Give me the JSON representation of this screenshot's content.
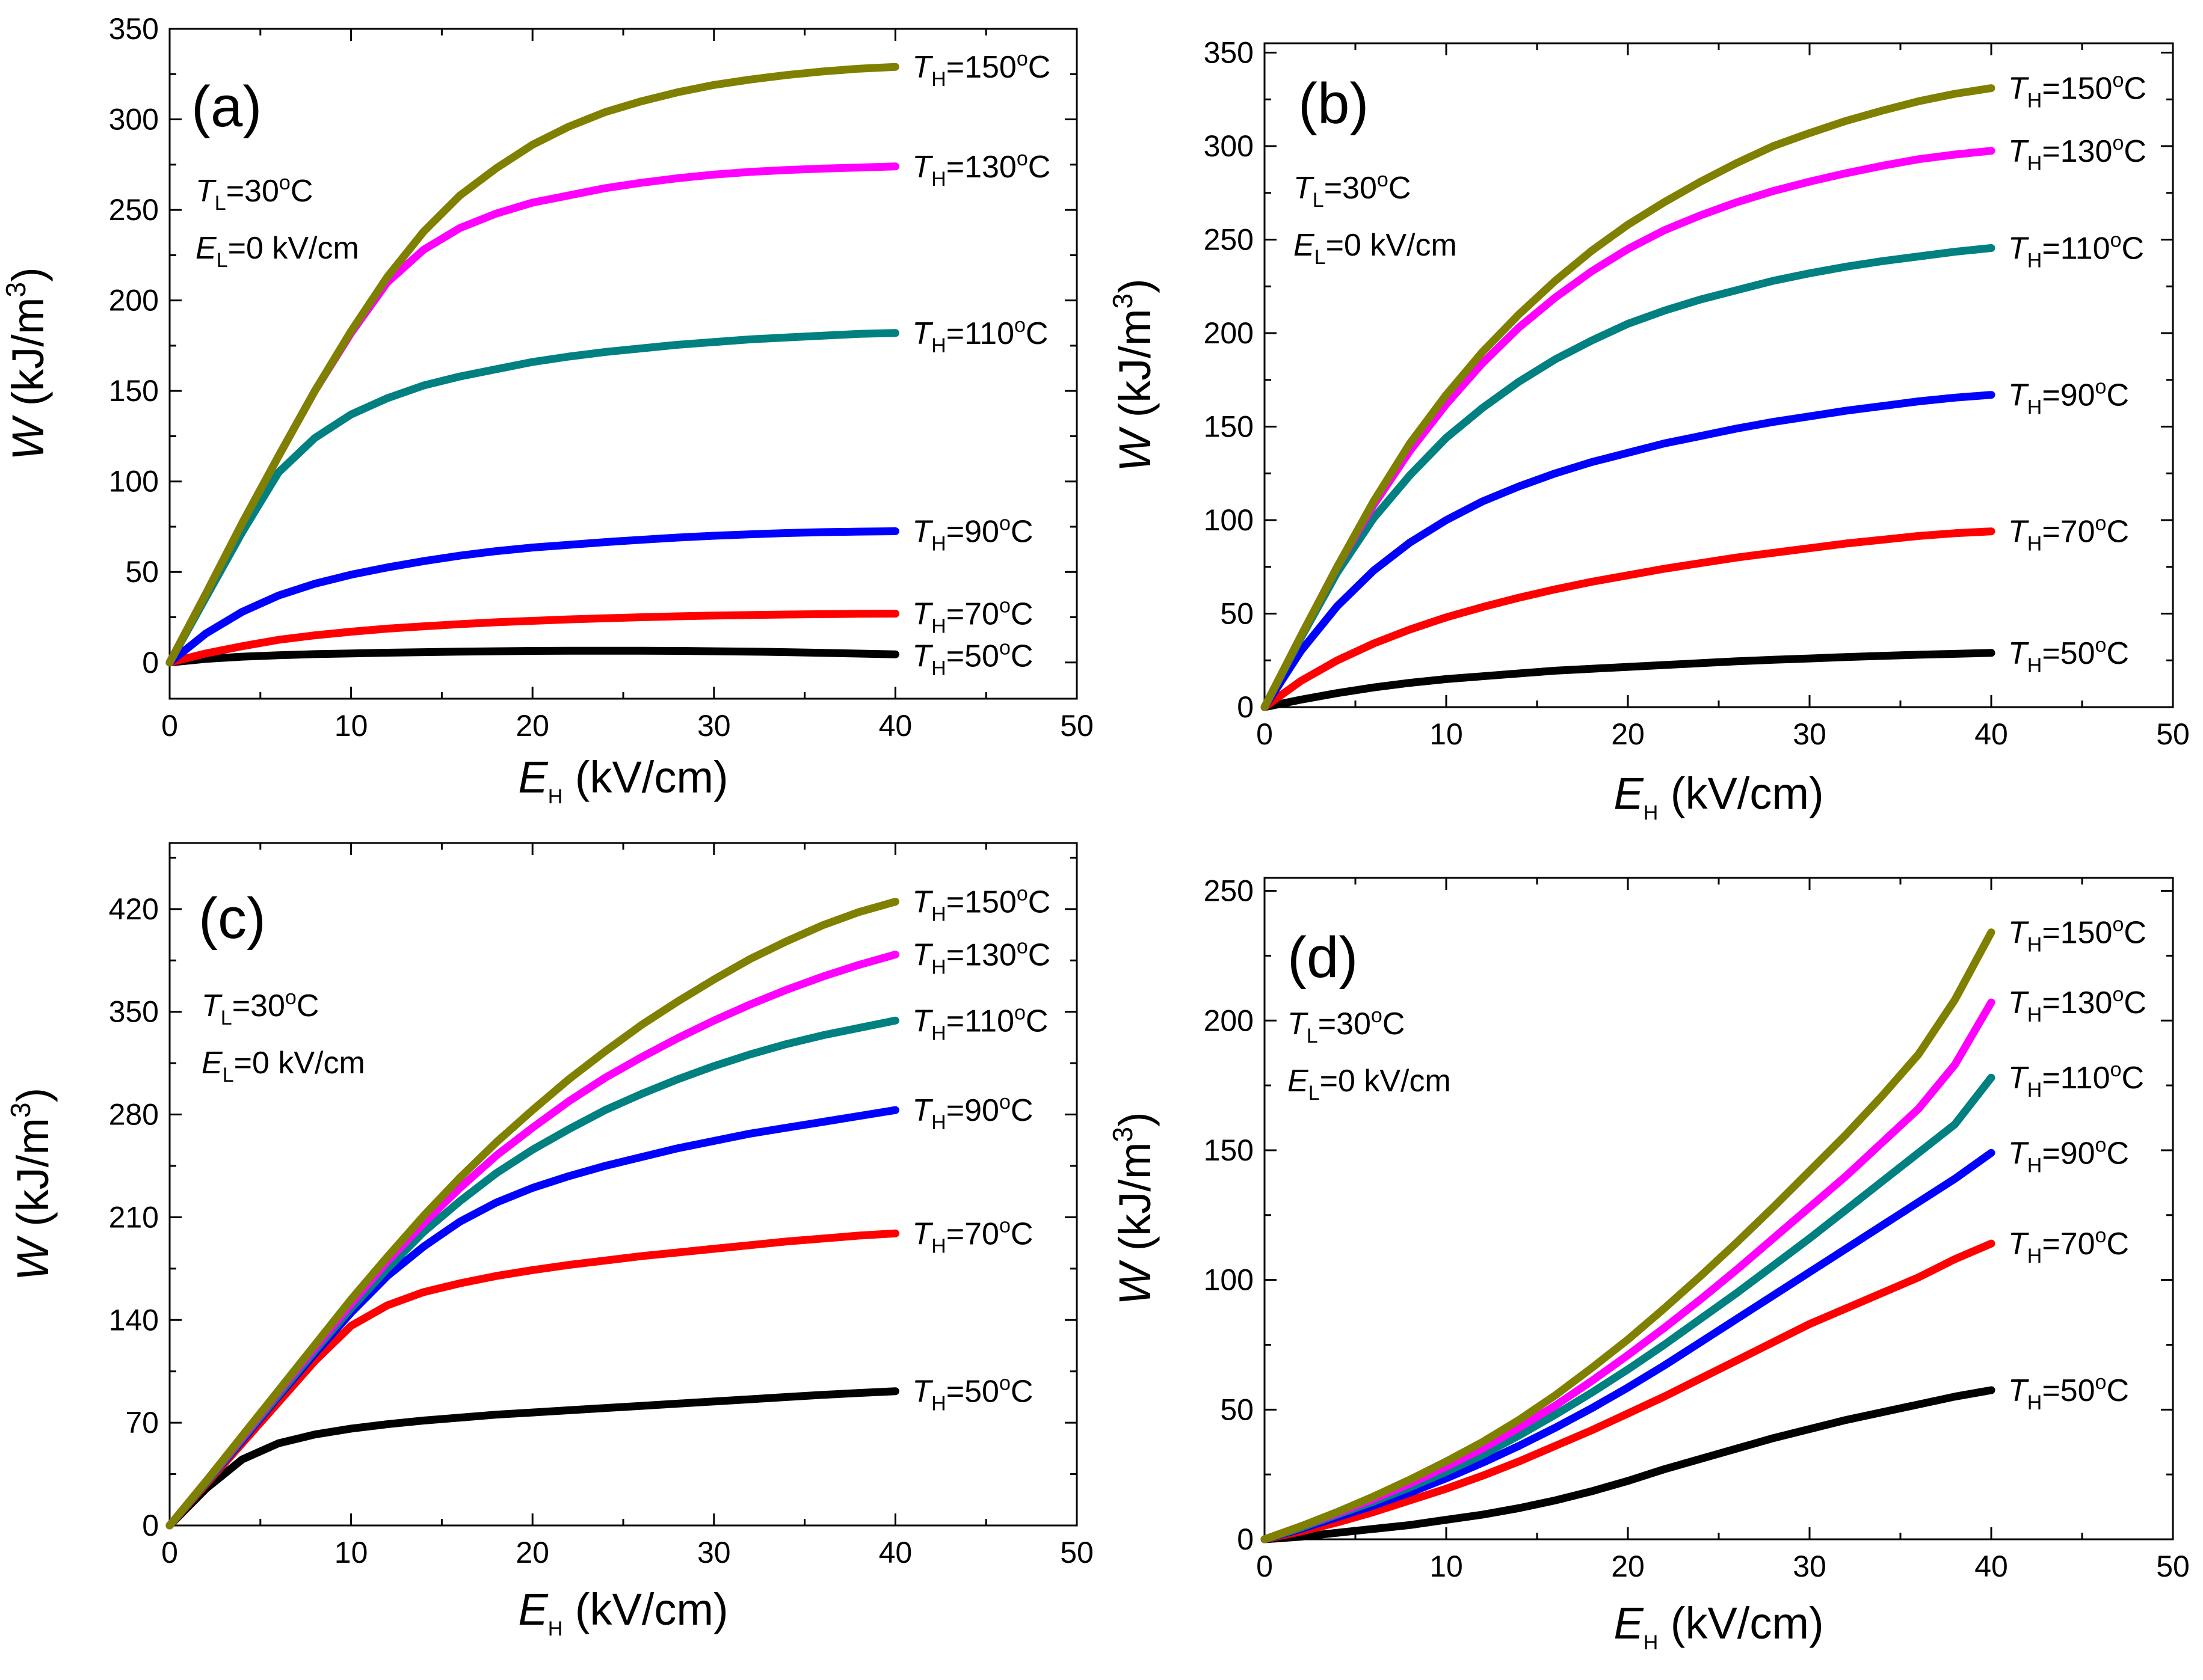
{
  "colors": {
    "T50": "#000000",
    "T70": "#ff0000",
    "T90": "#0000ff",
    "T110": "#008080",
    "T130": "#ff00ff",
    "T150": "#808000"
  },
  "common": {
    "xlabel": "E",
    "xlabel_sub": "H",
    "xlabel_unit": " (kV/cm)",
    "ylabel": "W",
    "ylabel_unit": " (kJ/m",
    "ylabel_sup": "3",
    "ylabel_close": ")",
    "annot_tl_var": "T",
    "annot_tl_sub": "L",
    "annot_tl_val": "=30",
    "annot_deg": "o",
    "annot_c": "C",
    "annot_el_var": "E",
    "annot_el_sub": "L",
    "annot_el_val": "=0 kV/cm",
    "series_var": "T",
    "series_sub": "H"
  },
  "chart_data": [
    {
      "type": "line",
      "panel": "(a)",
      "xlim": [
        0,
        50
      ],
      "ylim": [
        -20,
        350
      ],
      "xticks": [
        0,
        10,
        20,
        30,
        40,
        50
      ],
      "yticks": [
        0,
        50,
        100,
        150,
        200,
        250,
        300,
        350
      ],
      "x": [
        0,
        2,
        4,
        6,
        8,
        10,
        12,
        14,
        16,
        18,
        20,
        22,
        24,
        26,
        28,
        30,
        32,
        34,
        36,
        38,
        40
      ],
      "series": [
        {
          "name": "TH=50C",
          "key": "T50",
          "label_pre": "=50",
          "values": [
            0,
            2.0,
            3.2,
            4.0,
            4.6,
            5.0,
            5.4,
            5.7,
            6.0,
            6.2,
            6.4,
            6.5,
            6.5,
            6.5,
            6.4,
            6.2,
            6.0,
            5.7,
            5.3,
            4.9,
            4.5
          ]
        },
        {
          "name": "TH=70C",
          "key": "T70",
          "label_pre": "=70",
          "values": [
            0,
            5,
            9,
            12.5,
            15,
            17,
            18.7,
            20,
            21.2,
            22.2,
            23,
            23.8,
            24.4,
            25,
            25.5,
            25.9,
            26.2,
            26.5,
            26.7,
            26.9,
            27
          ]
        },
        {
          "name": "TH=90C",
          "key": "T90",
          "label_pre": "=90",
          "values": [
            0,
            16,
            28,
            37,
            43.5,
            48.5,
            52.5,
            56,
            59,
            61.5,
            63.5,
            65,
            66.5,
            67.8,
            69,
            70,
            70.8,
            71.5,
            72,
            72.3,
            72.5
          ]
        },
        {
          "name": "TH=110C",
          "key": "T110",
          "label_pre": "=110",
          "values": [
            0,
            36,
            72,
            105,
            124,
            137,
            146,
            153,
            158,
            162,
            166,
            169,
            171.5,
            173.5,
            175.5,
            177,
            178.5,
            179.5,
            180.5,
            181.5,
            182
          ]
        },
        {
          "name": "TH=130C",
          "key": "T130",
          "label_pre": "=130",
          "values": [
            0,
            38,
            77,
            114,
            150,
            182,
            210,
            228,
            240,
            248,
            254,
            258,
            262,
            265,
            267.5,
            269.5,
            271,
            272,
            272.8,
            273.4,
            274
          ]
        },
        {
          "name": "TH=150C",
          "key": "T150",
          "label_pre": "=150",
          "values": [
            0,
            38,
            77,
            114,
            150,
            183,
            213,
            238,
            258,
            273,
            286,
            296,
            304,
            310,
            315,
            319,
            322,
            324.5,
            326.5,
            328,
            329
          ]
        }
      ]
    },
    {
      "type": "line",
      "panel": "(b)",
      "xlim": [
        0,
        50
      ],
      "ylim": [
        0,
        355
      ],
      "xticks": [
        0,
        10,
        20,
        30,
        40,
        50
      ],
      "yticks": [
        0,
        50,
        100,
        150,
        200,
        250,
        300,
        350
      ],
      "x": [
        0,
        2,
        4,
        6,
        8,
        10,
        12,
        14,
        16,
        18,
        20,
        22,
        24,
        26,
        28,
        30,
        32,
        34,
        36,
        38,
        40
      ],
      "series": [
        {
          "name": "TH=50C",
          "key": "T50",
          "label_pre": "=50",
          "values": [
            0,
            4,
            7.5,
            10.5,
            13,
            15,
            16.5,
            18,
            19.5,
            20.5,
            21.5,
            22.5,
            23.5,
            24.5,
            25.3,
            26,
            26.8,
            27.4,
            28,
            28.5,
            29
          ]
        },
        {
          "name": "TH=70C",
          "key": "T70",
          "label_pre": "=70",
          "values": [
            0,
            14,
            25,
            34,
            41.5,
            48,
            53.5,
            58.5,
            63,
            67,
            70.5,
            74,
            77,
            80,
            82.5,
            85,
            87.5,
            89.5,
            91.5,
            93,
            94
          ]
        },
        {
          "name": "TH=90C",
          "key": "T90",
          "label_pre": "=90",
          "values": [
            0,
            30,
            54,
            73,
            88,
            100,
            110,
            118,
            125,
            131,
            136,
            141,
            145,
            149,
            152.5,
            155.5,
            158.5,
            161,
            163.5,
            165.5,
            167
          ]
        },
        {
          "name": "TH=110C",
          "key": "T110",
          "label_pre": "=110",
          "values": [
            0,
            37,
            72,
            101,
            124,
            144,
            160,
            174,
            186,
            196,
            205,
            212,
            218,
            223,
            228,
            232,
            235.5,
            238.5,
            241,
            243.5,
            245.5
          ]
        },
        {
          "name": "TH=130C",
          "key": "T130",
          "label_pre": "=130",
          "values": [
            0,
            38,
            75,
            108,
            137,
            162,
            184,
            203,
            219,
            233,
            245,
            255,
            263,
            270,
            276,
            281,
            285.5,
            289.5,
            293,
            295.5,
            297.5
          ]
        },
        {
          "name": "TH=150C",
          "key": "T150",
          "label_pre": "=150",
          "values": [
            0,
            38,
            75,
            110,
            141,
            167,
            190,
            210,
            228,
            244,
            258,
            270,
            281,
            291,
            300,
            307,
            313.5,
            319,
            324,
            328,
            331
          ]
        }
      ]
    },
    {
      "type": "line",
      "panel": "(c)",
      "xlim": [
        0,
        50
      ],
      "ylim": [
        0,
        465
      ],
      "xticks": [
        0,
        10,
        20,
        30,
        40,
        50
      ],
      "yticks": [
        0,
        70,
        140,
        210,
        280,
        350,
        420
      ],
      "x": [
        0,
        2,
        4,
        6,
        8,
        10,
        12,
        14,
        16,
        18,
        20,
        22,
        24,
        26,
        28,
        30,
        32,
        34,
        36,
        38,
        40
      ],
      "series": [
        {
          "name": "TH=50C",
          "key": "T50",
          "label_pre": "=50",
          "values": [
            0,
            25,
            45,
            56,
            62,
            66,
            69,
            71.5,
            73.5,
            75.5,
            77,
            78.5,
            80,
            81.5,
            83,
            84.5,
            86,
            87.5,
            89,
            90.3,
            91.5
          ]
        },
        {
          "name": "TH=70C",
          "key": "T70",
          "label_pre": "=70",
          "values": [
            0,
            28,
            56,
            84,
            112,
            136,
            150,
            159,
            165,
            170,
            174,
            177.5,
            180.5,
            183.5,
            186,
            188.5,
            191,
            193.5,
            195.5,
            197.5,
            199
          ]
        },
        {
          "name": "TH=90C",
          "key": "T90",
          "label_pre": "=90",
          "values": [
            0,
            29,
            58,
            88,
            117,
            145,
            170,
            190,
            207,
            220,
            230,
            238,
            245,
            251,
            257,
            262,
            267,
            271,
            275,
            279,
            283
          ]
        },
        {
          "name": "TH=110C",
          "key": "T110",
          "label_pre": "=110",
          "values": [
            0,
            29,
            59,
            89,
            119,
            148,
            175,
            200,
            221,
            240,
            256,
            270,
            283,
            294,
            304,
            313,
            321,
            328,
            334,
            339,
            344
          ]
        },
        {
          "name": "TH=130C",
          "key": "T130",
          "label_pre": "=130",
          "values": [
            0,
            30,
            60,
            91,
            121,
            151,
            180,
            206,
            230,
            252,
            271,
            289,
            305,
            319,
            332,
            344,
            355,
            365,
            374,
            382,
            389
          ]
        },
        {
          "name": "TH=150C",
          "key": "T150",
          "label_pre": "=150",
          "values": [
            0,
            30,
            61,
            92,
            123,
            154,
            183,
            211,
            237,
            261,
            283,
            304,
            323,
            341,
            357,
            372,
            386,
            398,
            409,
            418,
            425
          ]
        }
      ]
    },
    {
      "type": "line",
      "panel": "(d)",
      "xlim": [
        0,
        50
      ],
      "ylim": [
        0,
        255
      ],
      "xticks": [
        0,
        10,
        20,
        30,
        40,
        50
      ],
      "yticks": [
        0,
        50,
        100,
        150,
        200,
        250
      ],
      "x": [
        0,
        2,
        4,
        6,
        8,
        10,
        12,
        14,
        16,
        18,
        20,
        22,
        24,
        26,
        28,
        30,
        32,
        34,
        36,
        38,
        40
      ],
      "series": [
        {
          "name": "TH=50C",
          "key": "T50",
          "label_pre": "=50",
          "values": [
            0,
            1,
            2.5,
            4,
            5.5,
            7.5,
            9.5,
            12,
            15,
            18.5,
            22.5,
            27,
            31,
            35,
            39,
            42.5,
            46,
            49,
            52,
            55,
            57.5
          ]
        },
        {
          "name": "TH=70C",
          "key": "T70",
          "label_pre": "=70",
          "values": [
            0,
            3,
            6.5,
            10.5,
            15,
            19.5,
            24.5,
            30,
            36,
            42,
            48.5,
            55,
            62,
            69,
            76,
            83,
            89,
            95,
            101,
            108,
            114
          ]
        },
        {
          "name": "TH=90C",
          "key": "T90",
          "label_pre": "=90",
          "values": [
            0,
            4,
            8.5,
            13,
            18,
            23.5,
            29.5,
            36,
            43,
            50.5,
            58.5,
            67,
            76,
            85,
            94,
            103,
            112,
            121,
            130,
            139,
            149
          ]
        },
        {
          "name": "TH=110C",
          "key": "T110",
          "label_pre": "=110",
          "values": [
            0,
            4.5,
            9.5,
            14.5,
            20,
            26,
            32.5,
            40,
            48,
            56.5,
            65.5,
            75,
            85,
            95,
            105.5,
            116,
            127,
            138,
            149,
            160,
            178
          ]
        },
        {
          "name": "TH=130C",
          "key": "T130",
          "label_pre": "=130",
          "values": [
            0,
            5,
            10,
            15.5,
            21.5,
            28,
            35,
            43,
            51.5,
            61,
            71,
            81.5,
            92.5,
            104,
            116,
            128,
            140,
            153,
            166,
            183,
            207
          ]
        },
        {
          "name": "TH=150C",
          "key": "T150",
          "label_pre": "=150",
          "values": [
            0,
            5,
            10.5,
            16.5,
            23,
            30,
            37.5,
            46,
            55.5,
            66,
            77,
            89,
            101.5,
            114.5,
            128,
            142,
            156,
            171,
            187,
            208,
            234
          ]
        }
      ]
    }
  ]
}
